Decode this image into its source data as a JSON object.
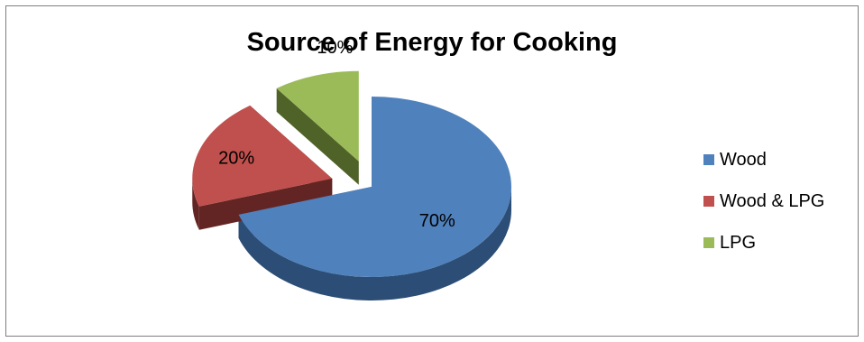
{
  "chart_data": {
    "type": "pie",
    "style": "3d-exploded",
    "title": "Source of Energy for Cooking",
    "slices": [
      {
        "name": "Wood",
        "value": 70,
        "label": "70%",
        "color": "#4F81BD",
        "side_color": "#2C4D75"
      },
      {
        "name": "Wood & LPG",
        "value": 20,
        "label": "20%",
        "color": "#C0504D",
        "side_color": "#632523"
      },
      {
        "name": "LPG",
        "value": 10,
        "label": "10%",
        "color": "#9BBB59",
        "side_color": "#4F6228"
      }
    ],
    "legend_position": "right"
  }
}
